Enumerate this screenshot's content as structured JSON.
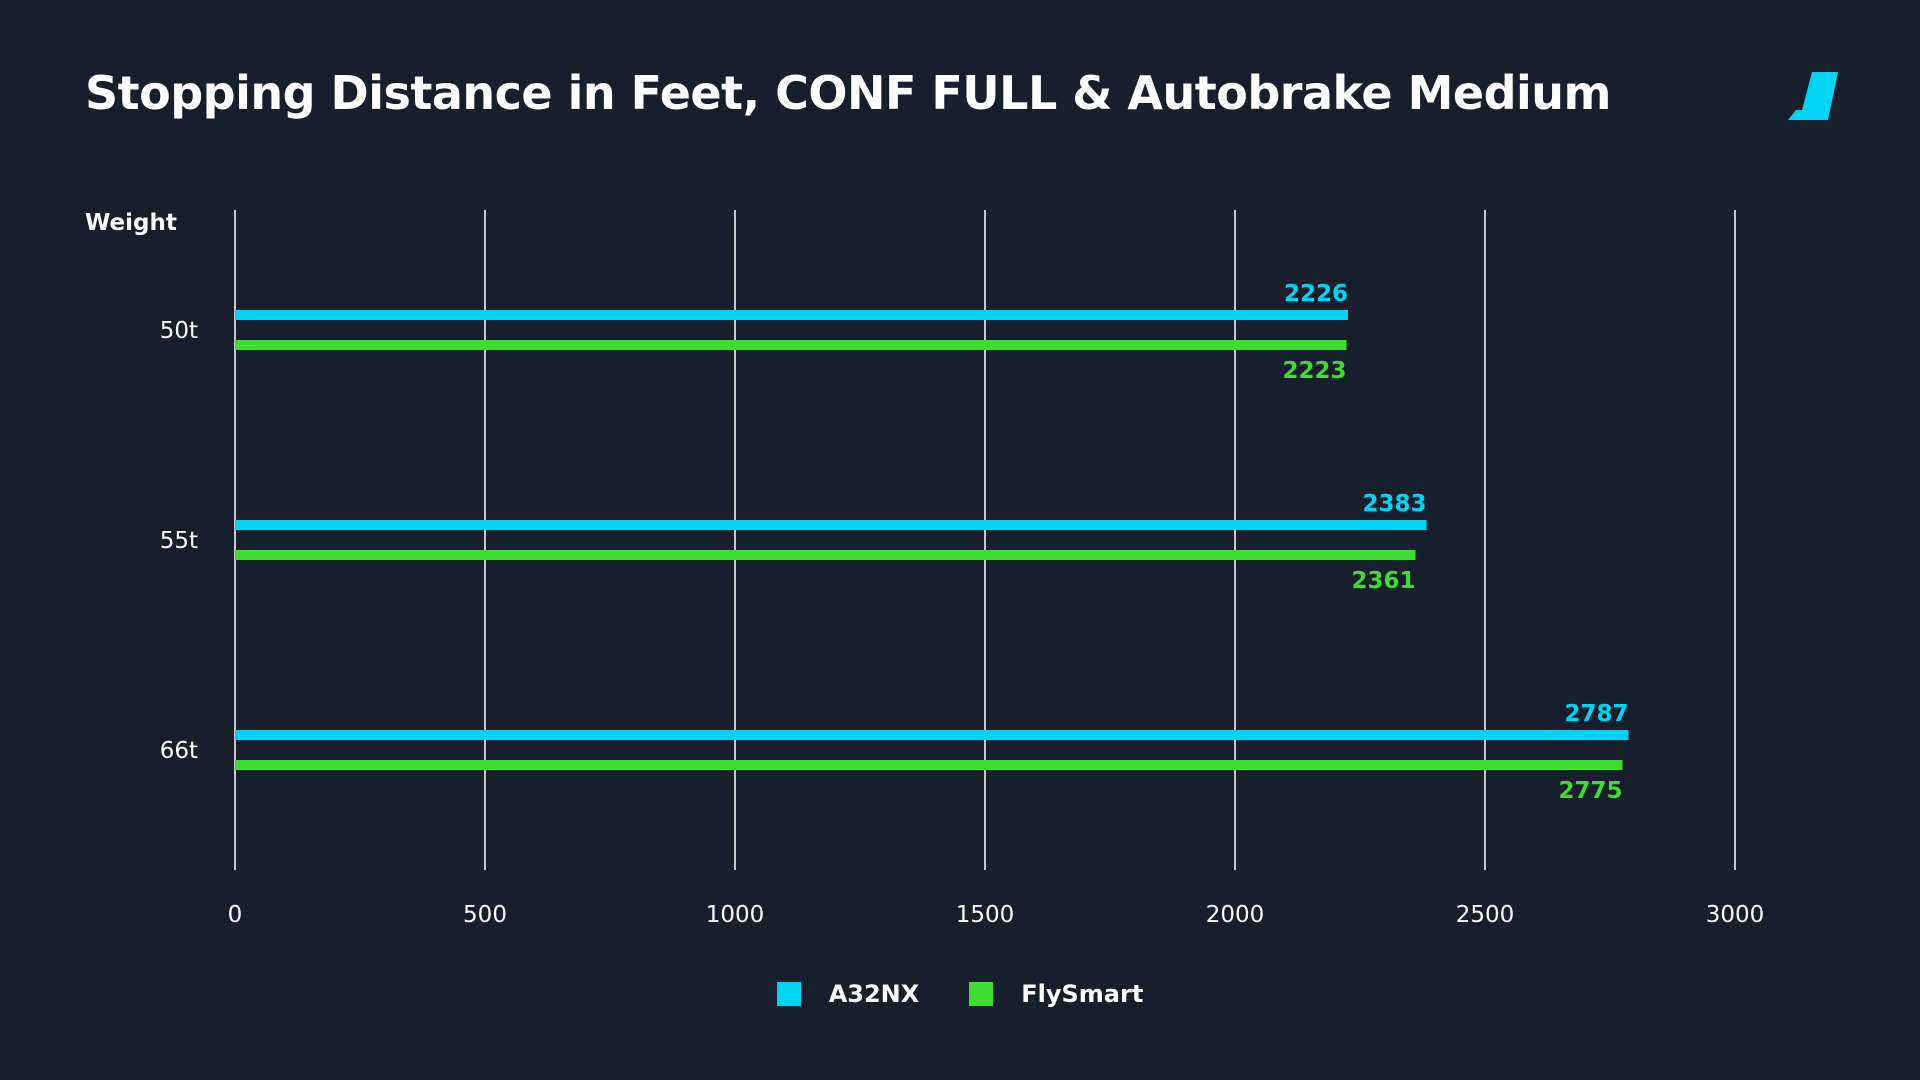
{
  "chart_data": {
    "type": "bar",
    "orientation": "horizontal",
    "title": "Stopping Distance in Feet, CONF FULL & Autobrake Medium",
    "ylabel": "Weight",
    "xlabel": "",
    "categories": [
      "50t",
      "55t",
      "66t"
    ],
    "series": [
      {
        "name": "A32NX",
        "color": "#00d4f5",
        "values": [
          2226,
          2383,
          2787
        ]
      },
      {
        "name": "FlySmart",
        "color": "#3ddc2e",
        "values": [
          2223,
          2361,
          2775
        ]
      }
    ],
    "xlim": [
      0,
      3000
    ],
    "xticks": [
      "0",
      "500",
      "1000",
      "1500",
      "2000",
      "2500",
      "3000"
    ],
    "grid": true,
    "legend": "bottom"
  },
  "icons": {
    "logo": "flybywire-logo-icon"
  },
  "colors": {
    "background": "#171e2c",
    "accent": "#00d4f5",
    "secondary": "#3ddc2e",
    "gridline": "#ffffff"
  }
}
